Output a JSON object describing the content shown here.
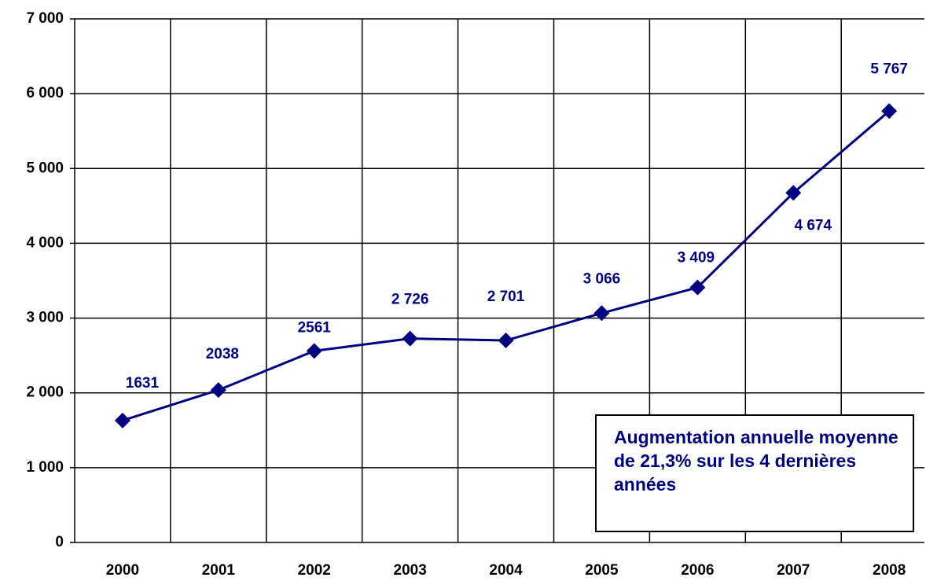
{
  "chart_data": {
    "type": "line",
    "categories": [
      "2000",
      "2001",
      "2002",
      "2003",
      "2004",
      "2005",
      "2006",
      "2007",
      "2008"
    ],
    "values": [
      1631,
      2038,
      2561,
      2726,
      2701,
      3066,
      3409,
      4674,
      5767
    ],
    "value_labels": [
      "1631",
      "2038",
      "2561",
      "2 726",
      "2 701",
      "3 066",
      "3 409",
      "4 674",
      "5 767"
    ],
    "color": "#000080",
    "ylim": [
      0,
      7000
    ],
    "yticks": [
      0,
      {
        "value": 1000,
        "label": "1 000"
      },
      {
        "value": 2000,
        "label": "2 000"
      },
      {
        "value": 3000,
        "label": "3 000"
      },
      {
        "value": 4000,
        "label": "4 000"
      },
      {
        "value": 5000,
        "label": "5 000"
      },
      {
        "value": 6000,
        "label": "6 000"
      },
      {
        "value": 7000,
        "label": "7 000"
      }
    ],
    "grid": true,
    "annotation": "Augmentation annuelle moyenne de 21,3% sur les 4 dernières années"
  }
}
